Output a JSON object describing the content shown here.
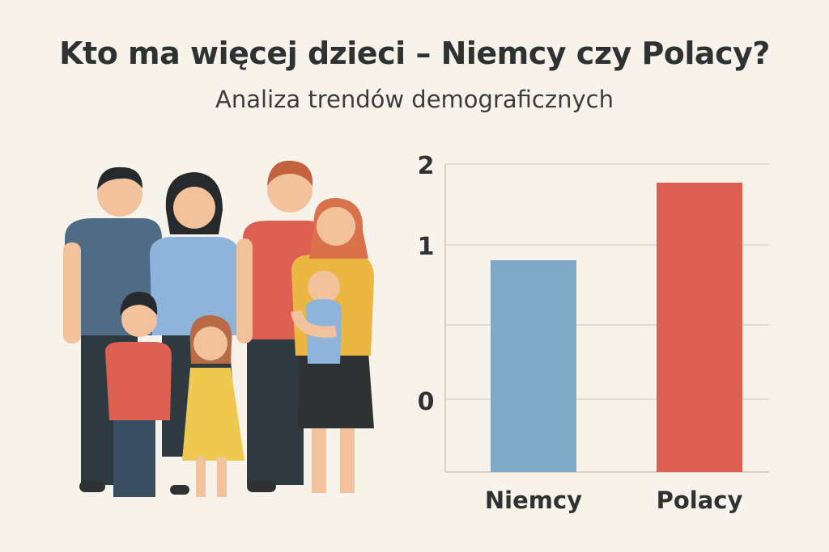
{
  "header": {
    "title": "Kto ma więcej dzieci – Niemcy czy Polacy?",
    "subtitle": "Analiza trendów demograficznych"
  },
  "illustration": "family-group",
  "chart_data": {
    "type": "bar",
    "categories": [
      "Niemcy",
      "Polacy"
    ],
    "values": [
      0.81,
      1.77
    ],
    "colors": [
      "#7fa7c6",
      "#dd5f51"
    ],
    "ytick_labels": [
      "2",
      "1",
      "0"
    ],
    "ylim": [
      0,
      2
    ],
    "grid": true,
    "title": "",
    "xlabel": "",
    "ylabel": ""
  }
}
